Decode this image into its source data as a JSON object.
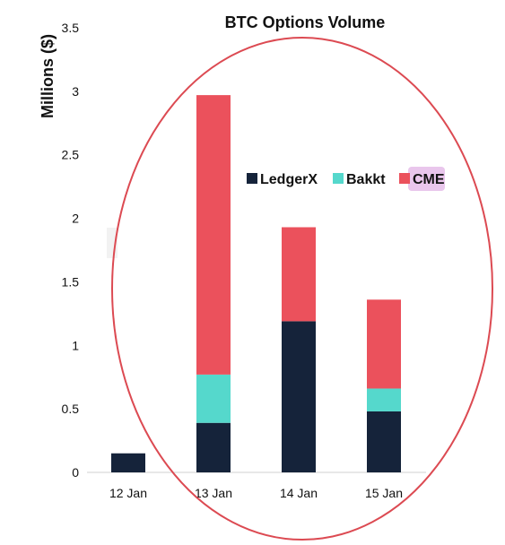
{
  "chart_data": {
    "type": "bar",
    "stacked": true,
    "title": "BTC Options Volume",
    "xlabel": "",
    "ylabel": "Millions ($)",
    "ylim": [
      0,
      3.5
    ],
    "yticks": [
      "0",
      "0.5",
      "1",
      "1.5",
      "2",
      "2.5",
      "3",
      "3.5"
    ],
    "categories": [
      "12 Jan",
      "13 Jan",
      "14 Jan",
      "15 Jan"
    ],
    "series": [
      {
        "name": "LedgerX",
        "color": "#15233a",
        "values": [
          0.15,
          0.39,
          1.19,
          0.48
        ]
      },
      {
        "name": "Bakkt",
        "color": "#55d8cc",
        "values": [
          0,
          0.38,
          0,
          0.18
        ]
      },
      {
        "name": "CME",
        "color": "#eb515c",
        "values": [
          0,
          2.2,
          0.74,
          0.7
        ]
      }
    ],
    "legend_position": "top-right",
    "highlight_color": "#dc4a52",
    "grid": false
  }
}
